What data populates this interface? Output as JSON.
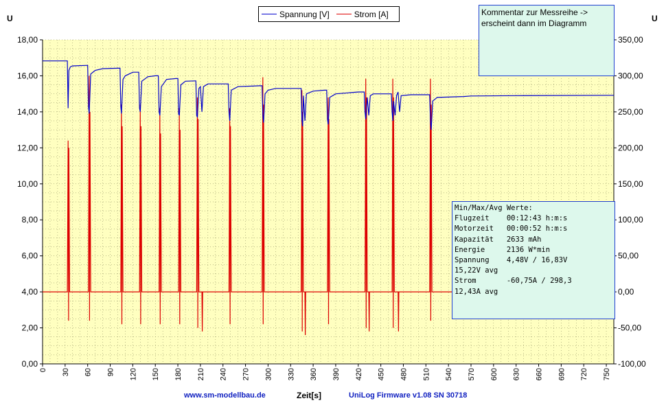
{
  "chart_data": {
    "type": "line",
    "y_axis_label": "U",
    "xlabel": "Zeit[s]",
    "xlim": [
      0,
      760
    ],
    "ylim_left": [
      0,
      18
    ],
    "ylim_right": [
      -100,
      350
    ],
    "x_ticks": [
      "0",
      "30",
      "60",
      "90",
      "120",
      "150",
      "180",
      "210",
      "240",
      "270",
      "300",
      "330",
      "360",
      "390",
      "420",
      "450",
      "480",
      "510",
      "540",
      "570",
      "600",
      "630",
      "660",
      "690",
      "720",
      "750"
    ],
    "y_left_ticks": [
      "0,00",
      "2,00",
      "4,00",
      "6,00",
      "8,00",
      "10,00",
      "12,00",
      "14,00",
      "16,00",
      "18,00"
    ],
    "y_right_ticks": [
      "-100,00",
      "-50,00",
      "0,00",
      "50,00",
      "100,00",
      "150,00",
      "200,00",
      "250,00",
      "300,00",
      "350,00"
    ],
    "grid": true,
    "legend_position": "top-center",
    "colors": {
      "spannung": "#0000cc",
      "strom": "#dd0000",
      "plot_bg": "#ffffc0"
    },
    "series": [
      {
        "name": "Spannung [V]",
        "axis": "left",
        "points": [
          [
            0,
            16.83
          ],
          [
            33,
            16.83
          ],
          [
            34,
            14.2
          ],
          [
            35,
            16.3
          ],
          [
            37,
            16.5
          ],
          [
            40,
            16.55
          ],
          [
            60,
            16.58
          ],
          [
            61,
            14.3
          ],
          [
            62,
            13.9
          ],
          [
            64,
            16.1
          ],
          [
            70,
            16.3
          ],
          [
            80,
            16.4
          ],
          [
            100,
            16.42
          ],
          [
            103,
            16.42
          ],
          [
            104,
            14.3
          ],
          [
            105,
            13.9
          ],
          [
            107,
            15.8
          ],
          [
            110,
            16.0
          ],
          [
            120,
            16.2
          ],
          [
            128,
            16.2
          ],
          [
            129,
            14.2
          ],
          [
            130,
            14.0
          ],
          [
            132,
            15.7
          ],
          [
            140,
            15.95
          ],
          [
            150,
            16.0
          ],
          [
            154,
            16.0
          ],
          [
            155,
            14.0
          ],
          [
            156,
            13.8
          ],
          [
            158,
            15.4
          ],
          [
            165,
            15.8
          ],
          [
            177,
            15.85
          ],
          [
            180,
            15.85
          ],
          [
            181,
            13.9
          ],
          [
            182,
            13.8
          ],
          [
            184,
            15.5
          ],
          [
            190,
            15.7
          ],
          [
            203,
            15.72
          ],
          [
            204,
            15.72
          ],
          [
            205,
            13.8
          ],
          [
            206,
            13.7
          ],
          [
            208,
            15.3
          ],
          [
            210,
            15.4
          ],
          [
            212,
            14.0
          ],
          [
            214,
            15.4
          ],
          [
            220,
            15.55
          ],
          [
            246,
            15.55
          ],
          [
            247,
            15.55
          ],
          [
            248,
            14.0
          ],
          [
            249,
            13.5
          ],
          [
            251,
            15.2
          ],
          [
            260,
            15.4
          ],
          [
            290,
            15.45
          ],
          [
            292,
            15.45
          ],
          [
            293,
            13.8
          ],
          [
            294,
            13.4
          ],
          [
            296,
            15.0
          ],
          [
            300,
            15.2
          ],
          [
            310,
            15.3
          ],
          [
            343,
            15.3
          ],
          [
            344,
            15.3
          ],
          [
            345,
            13.6
          ],
          [
            346,
            13.2
          ],
          [
            347,
            14.9
          ],
          [
            349,
            13.5
          ],
          [
            351,
            15.0
          ],
          [
            360,
            15.15
          ],
          [
            375,
            15.2
          ],
          [
            378,
            15.2
          ],
          [
            379,
            13.6
          ],
          [
            380,
            13.3
          ],
          [
            382,
            14.8
          ],
          [
            390,
            15.0
          ],
          [
            420,
            15.1
          ],
          [
            428,
            15.1
          ],
          [
            429,
            14.0
          ],
          [
            430,
            13.6
          ],
          [
            432,
            14.8
          ],
          [
            434,
            13.8
          ],
          [
            436,
            14.9
          ],
          [
            440,
            15.0
          ],
          [
            463,
            15.0
          ],
          [
            464,
            15.0
          ],
          [
            465,
            14.0
          ],
          [
            466,
            13.5
          ],
          [
            467,
            14.6
          ],
          [
            469,
            13.8
          ],
          [
            471,
            14.9
          ],
          [
            473,
            15.1
          ],
          [
            475,
            14.0
          ],
          [
            477,
            14.9
          ],
          [
            490,
            14.95
          ],
          [
            514,
            14.95
          ],
          [
            515,
            14.95
          ],
          [
            516,
            13.5
          ],
          [
            517,
            13.0
          ],
          [
            519,
            14.6
          ],
          [
            525,
            14.8
          ],
          [
            560,
            14.85
          ],
          [
            570,
            14.88
          ],
          [
            630,
            14.9
          ],
          [
            760,
            14.92
          ]
        ]
      },
      {
        "name": "Strom [A]",
        "axis": "right",
        "points": [
          [
            0,
            0
          ],
          [
            33,
            0
          ],
          [
            34,
            210
          ],
          [
            34.6,
            -40
          ],
          [
            35,
            200
          ],
          [
            36,
            0
          ],
          [
            61,
            0
          ],
          [
            62,
            300
          ],
          [
            62.5,
            -40
          ],
          [
            63,
            250
          ],
          [
            64,
            0
          ],
          [
            104,
            0
          ],
          [
            105,
            260
          ],
          [
            105.5,
            -45
          ],
          [
            106,
            230
          ],
          [
            107,
            0
          ],
          [
            129,
            0
          ],
          [
            130,
            260
          ],
          [
            130.5,
            -45
          ],
          [
            131,
            230
          ],
          [
            132,
            0
          ],
          [
            155,
            0
          ],
          [
            156,
            255
          ],
          [
            156.5,
            -45
          ],
          [
            157,
            220
          ],
          [
            158,
            0
          ],
          [
            181,
            0
          ],
          [
            182,
            255
          ],
          [
            182.5,
            -45
          ],
          [
            183,
            225
          ],
          [
            184,
            0
          ],
          [
            205,
            0
          ],
          [
            206,
            270
          ],
          [
            206.5,
            -50
          ],
          [
            207,
            240
          ],
          [
            208,
            0
          ],
          [
            212,
            0
          ],
          [
            212.5,
            -55
          ],
          [
            213,
            0
          ],
          [
            248,
            0
          ],
          [
            249,
            255
          ],
          [
            249.5,
            -45
          ],
          [
            250,
            230
          ],
          [
            251,
            0
          ],
          [
            292,
            0
          ],
          [
            293,
            298
          ],
          [
            293.5,
            -45
          ],
          [
            294,
            260
          ],
          [
            295,
            0
          ],
          [
            344,
            0
          ],
          [
            345,
            280
          ],
          [
            345.5,
            -55
          ],
          [
            346,
            250
          ],
          [
            347,
            0
          ],
          [
            349,
            0
          ],
          [
            349.5,
            -60
          ],
          [
            350,
            0
          ],
          [
            379,
            0
          ],
          [
            380,
            270
          ],
          [
            380.5,
            -45
          ],
          [
            381,
            240
          ],
          [
            382,
            0
          ],
          [
            429,
            0
          ],
          [
            430,
            296
          ],
          [
            430.5,
            -50
          ],
          [
            431,
            270
          ],
          [
            432,
            0
          ],
          [
            434,
            0
          ],
          [
            434.5,
            -55
          ],
          [
            435,
            0
          ],
          [
            465,
            0
          ],
          [
            466,
            296
          ],
          [
            466.5,
            -50
          ],
          [
            467,
            270
          ],
          [
            468,
            0
          ],
          [
            473,
            0
          ],
          [
            473.5,
            -55
          ],
          [
            474,
            0
          ],
          [
            515,
            0
          ],
          [
            516,
            296
          ],
          [
            516.5,
            -40
          ],
          [
            517,
            260
          ],
          [
            518,
            0
          ],
          [
            760,
            0
          ]
        ]
      }
    ]
  },
  "legend": {
    "items": [
      "Spannung [V]",
      "Strom [A]"
    ]
  },
  "comment_box": {
    "text": "Kommentar zur Messreihe ->\nerscheint dann im Diagramm"
  },
  "stats_box": {
    "rows": [
      "Min/Max/Avg Werte:",
      "Flugzeit    00:12:43 h:m:s",
      "Motorzeit   00:00:52 h:m:s",
      "Kapazität   2633 mAh",
      "Energie     2136 W*min",
      "Spannung    4,48V / 16,83V",
      "15,22V avg",
      "Strom       -60,75A / 298,3",
      "12,43A avg"
    ]
  },
  "footer": {
    "website": "www.sm-modellbau.de",
    "firmware": "UniLog Firmware v1.08 SN 30718"
  }
}
